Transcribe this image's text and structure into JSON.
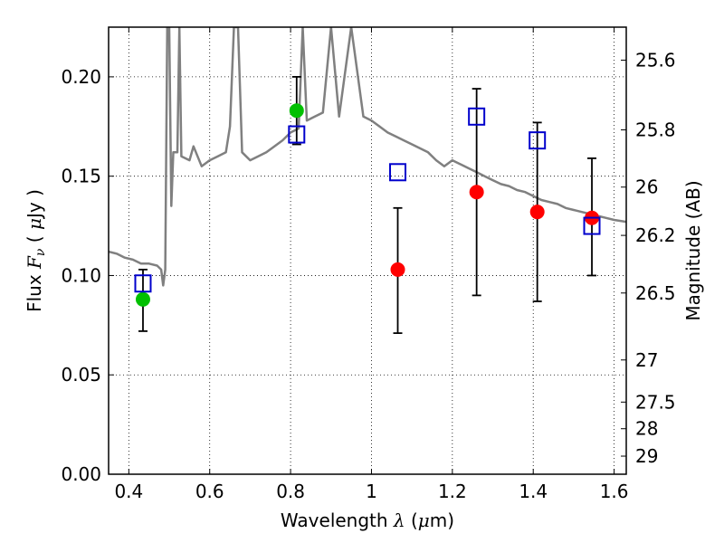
{
  "chart_data": {
    "type": "scatter",
    "xlabel": "Wavelength  λ (μm)",
    "ylabel": "Flux  Fν  ( μJy )",
    "ylabel_parts": {
      "pre": "Flux  ",
      "sym": "F",
      "sub": "ν",
      "mid": "  (  ",
      "mu": "μ",
      "post": "Jy )"
    },
    "xlabel_parts": {
      "pre": "Wavelength  ",
      "sym": "λ",
      "mid": " (",
      "mu": "μ",
      "post": "m)"
    },
    "y2label": "Magnitude (AB)",
    "xlim": [
      0.35,
      1.63
    ],
    "ylim": [
      0.0,
      0.225
    ],
    "grid": true,
    "x_ticks": [
      0.4,
      0.6,
      0.8,
      1.0,
      1.2,
      1.4,
      1.6
    ],
    "x_tick_labels": [
      "0.4",
      "0.6",
      "0.8",
      "1",
      "1.2",
      "1.4",
      "1.6"
    ],
    "y_ticks": [
      0.0,
      0.05,
      0.1,
      0.15,
      0.2
    ],
    "y_tick_labels": [
      "0.00",
      "0.05",
      "0.10",
      "0.15",
      "0.20"
    ],
    "y2_ticks": [
      {
        "label": "25.6",
        "flux": 0.2084
      },
      {
        "label": "25.8",
        "flux": 0.1733
      },
      {
        "label": "26",
        "flux": 0.1445
      },
      {
        "label": "26.2",
        "flux": 0.1202
      },
      {
        "label": "26.5",
        "flux": 0.0912
      },
      {
        "label": "27",
        "flux": 0.0575
      },
      {
        "label": "27.5",
        "flux": 0.0363
      },
      {
        "label": "28",
        "flux": 0.0229
      },
      {
        "label": "29",
        "flux": 0.0091
      }
    ],
    "series": [
      {
        "marker": "circle",
        "color": "#00c000",
        "points": [
          {
            "x": 0.435,
            "y": 0.088,
            "err_lo": 0.072,
            "err_hi": 0.103
          },
          {
            "x": 0.815,
            "y": 0.183,
            "err_lo": 0.166,
            "err_hi": 0.2
          }
        ]
      },
      {
        "marker": "circle",
        "color": "#ff0000",
        "points": [
          {
            "x": 1.065,
            "y": 0.103,
            "err_lo": 0.071,
            "err_hi": 0.134
          },
          {
            "x": 1.26,
            "y": 0.142,
            "err_lo": 0.09,
            "err_hi": 0.194
          },
          {
            "x": 1.41,
            "y": 0.132,
            "err_lo": 0.087,
            "err_hi": 0.177
          },
          {
            "x": 1.545,
            "y": 0.129,
            "err_lo": 0.1,
            "err_hi": 0.159
          }
        ]
      },
      {
        "marker": "square-open",
        "color": "#0000cc",
        "points": [
          {
            "x": 0.435,
            "y": 0.096
          },
          {
            "x": 0.815,
            "y": 0.171
          },
          {
            "x": 1.065,
            "y": 0.152
          },
          {
            "x": 1.26,
            "y": 0.18
          },
          {
            "x": 1.41,
            "y": 0.168
          },
          {
            "x": 1.545,
            "y": 0.125
          }
        ]
      },
      {
        "line": "solid",
        "color": "#808080",
        "points": [
          [
            0.35,
            0.112
          ],
          [
            0.37,
            0.111
          ],
          [
            0.39,
            0.109
          ],
          [
            0.41,
            0.108
          ],
          [
            0.43,
            0.106
          ],
          [
            0.45,
            0.106
          ],
          [
            0.47,
            0.105
          ],
          [
            0.48,
            0.103
          ],
          [
            0.485,
            0.095
          ],
          [
            0.49,
            0.103
          ],
          [
            0.495,
            0.225
          ],
          [
            0.5,
            0.225
          ],
          [
            0.505,
            0.135
          ],
          [
            0.51,
            0.162
          ],
          [
            0.52,
            0.162
          ],
          [
            0.525,
            0.225
          ],
          [
            0.53,
            0.16
          ],
          [
            0.55,
            0.158
          ],
          [
            0.56,
            0.165
          ],
          [
            0.57,
            0.16
          ],
          [
            0.58,
            0.155
          ],
          [
            0.6,
            0.158
          ],
          [
            0.62,
            0.16
          ],
          [
            0.64,
            0.162
          ],
          [
            0.65,
            0.175
          ],
          [
            0.66,
            0.225
          ],
          [
            0.67,
            0.225
          ],
          [
            0.68,
            0.162
          ],
          [
            0.7,
            0.158
          ],
          [
            0.72,
            0.16
          ],
          [
            0.74,
            0.162
          ],
          [
            0.76,
            0.165
          ],
          [
            0.78,
            0.168
          ],
          [
            0.8,
            0.172
          ],
          [
            0.82,
            0.174
          ],
          [
            0.83,
            0.225
          ],
          [
            0.84,
            0.178
          ],
          [
            0.86,
            0.18
          ],
          [
            0.88,
            0.182
          ],
          [
            0.9,
            0.225
          ],
          [
            0.92,
            0.18
          ],
          [
            0.95,
            0.225
          ],
          [
            0.98,
            0.18
          ],
          [
            1.0,
            0.178
          ],
          [
            1.02,
            0.175
          ],
          [
            1.04,
            0.172
          ],
          [
            1.06,
            0.17
          ],
          [
            1.08,
            0.168
          ],
          [
            1.1,
            0.166
          ],
          [
            1.12,
            0.164
          ],
          [
            1.14,
            0.162
          ],
          [
            1.16,
            0.158
          ],
          [
            1.18,
            0.155
          ],
          [
            1.2,
            0.158
          ],
          [
            1.22,
            0.156
          ],
          [
            1.24,
            0.154
          ],
          [
            1.26,
            0.152
          ],
          [
            1.28,
            0.15
          ],
          [
            1.3,
            0.148
          ],
          [
            1.32,
            0.146
          ],
          [
            1.34,
            0.145
          ],
          [
            1.36,
            0.143
          ],
          [
            1.38,
            0.142
          ],
          [
            1.4,
            0.14
          ],
          [
            1.42,
            0.138
          ],
          [
            1.44,
            0.137
          ],
          [
            1.46,
            0.136
          ],
          [
            1.48,
            0.134
          ],
          [
            1.5,
            0.133
          ],
          [
            1.52,
            0.132
          ],
          [
            1.54,
            0.131
          ],
          [
            1.56,
            0.13
          ],
          [
            1.58,
            0.129
          ],
          [
            1.6,
            0.128
          ],
          [
            1.63,
            0.127
          ]
        ]
      }
    ]
  }
}
